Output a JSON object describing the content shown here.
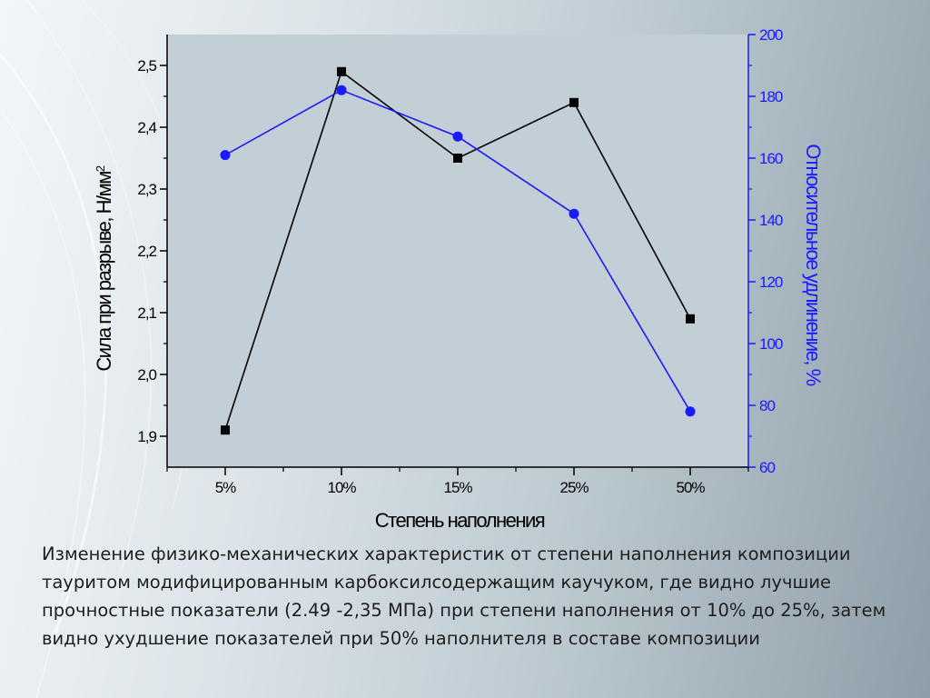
{
  "chart_data": {
    "type": "line",
    "categories": [
      "5%",
      "10%",
      "15%",
      "25%",
      "50%"
    ],
    "xlabel": "Степень наполнения",
    "y_left": {
      "label": "Сила при разрыве, Н/мм",
      "label_superscript": "2",
      "ylim": [
        1.85,
        2.55
      ],
      "ticks": [
        1.9,
        2.0,
        2.1,
        2.2,
        2.3,
        2.4,
        2.5
      ],
      "tick_labels": [
        "1,9",
        "2,0",
        "2,1",
        "2,2",
        "2,3",
        "2,4",
        "2,5"
      ],
      "color": "#000000"
    },
    "y_right": {
      "label": "Относительное удлинение, %",
      "ylim": [
        60,
        200
      ],
      "ticks": [
        60,
        80,
        100,
        120,
        140,
        160,
        180,
        200
      ],
      "tick_labels": [
        "60",
        "80",
        "100",
        "120",
        "140",
        "160",
        "180",
        "200"
      ],
      "color": "#1a1aff"
    },
    "series": [
      {
        "axis": "left",
        "marker": "square",
        "color": "#000000",
        "values": [
          1.91,
          2.49,
          2.35,
          2.44,
          2.09
        ]
      },
      {
        "axis": "right",
        "marker": "circle",
        "color": "#1a1aff",
        "values": [
          161,
          182,
          167,
          142,
          78
        ]
      }
    ],
    "grid": false,
    "plot_background": "#c3cfd6"
  },
  "caption": "Изменение физико-механических характеристик от степени наполнения композиции тауритом модифицированным карбоксилсодержащим каучуком, где видно лучшие прочностные показатели (2.49 -2,35 МПа) при степени наполнения от 10% до 25%, затем видно ухудшение показателей при 50% наполнителя в составе композиции"
}
